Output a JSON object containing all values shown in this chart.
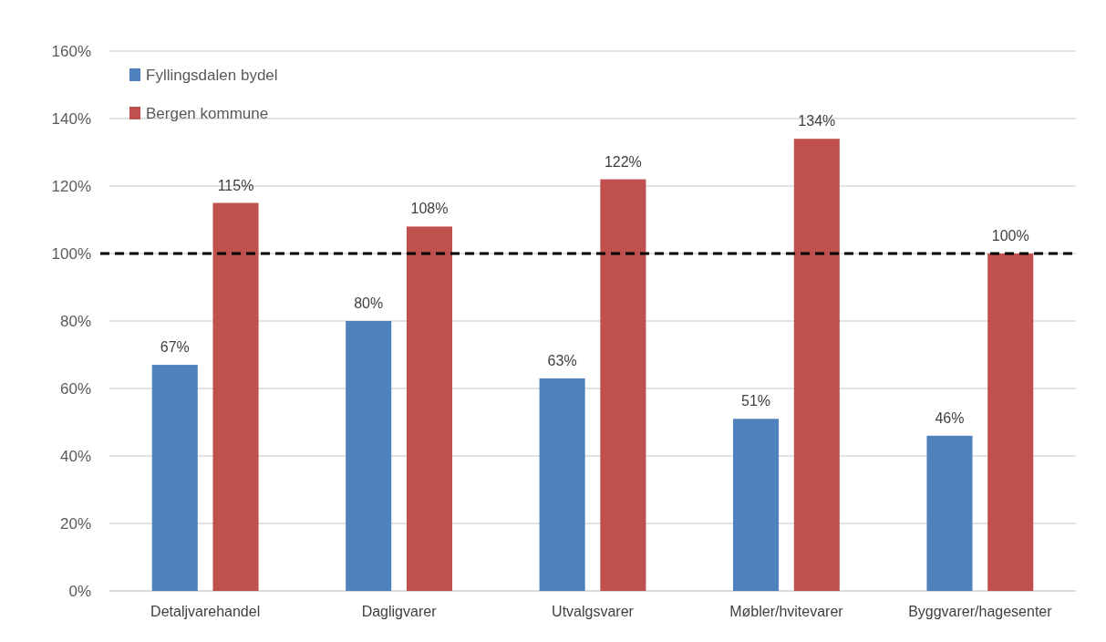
{
  "chart_data": {
    "type": "bar",
    "categories": [
      "Detaljvarehandel",
      "Dagligvarer",
      "Utvalgsvarer",
      "Møbler/hvitevarer",
      "Byggvarer/hagesenter"
    ],
    "series": [
      {
        "name": "Fyllingsdalen bydel",
        "color": "#4f81bd",
        "values": [
          67,
          80,
          63,
          51,
          46
        ],
        "value_labels": [
          "67%",
          "80%",
          "63%",
          "51%",
          "46%"
        ]
      },
      {
        "name": "Bergen kommune",
        "color": "#c0504d",
        "values": [
          115,
          108,
          122,
          134,
          100
        ],
        "value_labels": [
          "115%",
          "108%",
          "122%",
          "134%",
          "100%"
        ]
      }
    ],
    "ylim": [
      0,
      160
    ],
    "yticks": [
      {
        "value": 0,
        "label": "0%"
      },
      {
        "value": 20,
        "label": "20%"
      },
      {
        "value": 40,
        "label": "40%"
      },
      {
        "value": 60,
        "label": "60%"
      },
      {
        "value": 80,
        "label": "80%"
      },
      {
        "value": 100,
        "label": "100%"
      },
      {
        "value": 120,
        "label": "120%"
      },
      {
        "value": 140,
        "label": "140%"
      },
      {
        "value": 160,
        "label": "160%"
      }
    ],
    "grid": "y",
    "legend": "top left",
    "ref_lines": [
      {
        "axis": "y",
        "value": 100,
        "color": "#000000",
        "line_style": "dashed"
      }
    ]
  }
}
